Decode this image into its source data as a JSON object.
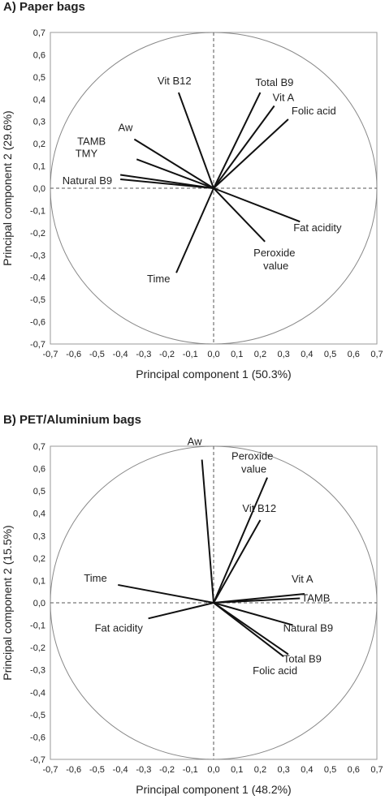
{
  "chart_data": [
    {
      "type": "scatter",
      "panel_title": "A)  Paper bags",
      "xlabel": "Principal component 1 (50.3%)",
      "ylabel": "Principal component 2 (29.6%)",
      "xlim": [
        -0.7,
        0.7
      ],
      "ylim": [
        -0.7,
        0.7
      ],
      "ticks": [
        "-0,7",
        "-0,6",
        "-0,5",
        "-0,4",
        "-0,3",
        "-0,2",
        "-0,1",
        "0,0",
        "0,1",
        "0,2",
        "0,3",
        "0,4",
        "0,5",
        "0,6",
        "0,7"
      ],
      "vectors": [
        {
          "label": "Vit B12",
          "x": -0.15,
          "y": 0.43
        },
        {
          "label": "Total B9",
          "x": 0.2,
          "y": 0.43
        },
        {
          "label": "Vit A",
          "x": 0.26,
          "y": 0.37
        },
        {
          "label": "Folic acid",
          "x": 0.32,
          "y": 0.31
        },
        {
          "label": "Aw",
          "x": -0.34,
          "y": 0.22
        },
        {
          "label": "TAMB",
          "x": -0.33,
          "y": 0.13
        },
        {
          "label": "TMY",
          "x": -0.4,
          "y": 0.06
        },
        {
          "label": "Natural B9",
          "x": -0.4,
          "y": 0.04
        },
        {
          "label": "Fat acidity",
          "x": 0.37,
          "y": -0.15
        },
        {
          "label": "Peroxide value",
          "x": 0.22,
          "y": -0.24
        },
        {
          "label": "Time",
          "x": -0.16,
          "y": -0.38
        }
      ]
    },
    {
      "type": "scatter",
      "panel_title": "B)  PET/Aluminium bags",
      "xlabel": "Principal component 1 (48.2%)",
      "ylabel": "Principal component 2 (15.5%)",
      "xlim": [
        -0.7,
        0.7
      ],
      "ylim": [
        -0.7,
        0.7
      ],
      "ticks": [
        "-0,7",
        "-0,6",
        "-0,5",
        "-0,4",
        "-0,3",
        "-0,2",
        "-0,1",
        "0,0",
        "0,1",
        "0,2",
        "0,3",
        "0,4",
        "0,5",
        "0,6",
        "0,7"
      ],
      "vectors": [
        {
          "label": "Aw",
          "x": -0.05,
          "y": 0.64
        },
        {
          "label": "Peroxide value",
          "x": 0.23,
          "y": 0.56
        },
        {
          "label": "Vit B12",
          "x": 0.2,
          "y": 0.37
        },
        {
          "label": "Time",
          "x": -0.41,
          "y": 0.08
        },
        {
          "label": "Vit A",
          "x": 0.39,
          "y": 0.04
        },
        {
          "label": "TAMB",
          "x": 0.37,
          "y": 0.02
        },
        {
          "label": "Fat acidity",
          "x": -0.28,
          "y": -0.07
        },
        {
          "label": "Natural B9",
          "x": 0.34,
          "y": -0.1
        },
        {
          "label": "Total B9",
          "x": 0.32,
          "y": -0.23
        },
        {
          "label": "Folic acid",
          "x": 0.3,
          "y": -0.24
        }
      ]
    }
  ]
}
